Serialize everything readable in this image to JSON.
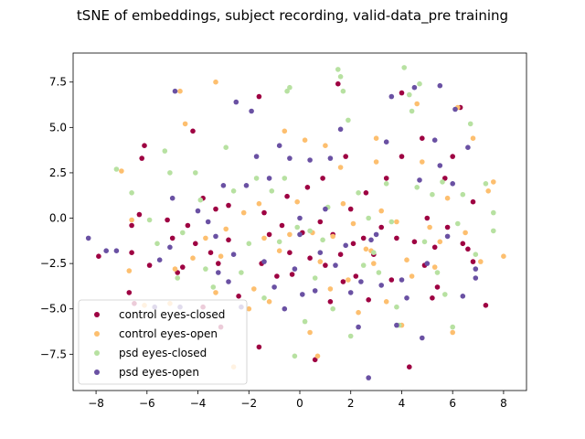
{
  "chart_data": {
    "type": "scatter",
    "title": "tSNE of embeddings, subject recording, valid-data_pre training",
    "xlabel": "",
    "ylabel": "",
    "xlim": [
      -8.9,
      8.9
    ],
    "ylim": [
      -9.5,
      9.1
    ],
    "xticks": [
      -8,
      -6,
      -4,
      -2,
      0,
      2,
      4,
      6,
      8
    ],
    "yticks": [
      -7.5,
      -5.0,
      -2.5,
      0.0,
      2.5,
      5.0,
      7.5
    ],
    "xtick_labels": [
      "−8",
      "−6",
      "−4",
      "−2",
      "0",
      "2",
      "4",
      "6",
      "8"
    ],
    "ytick_labels": [
      "−7.5",
      "−5.0",
      "−2.5",
      "0.0",
      "2.5",
      "5.0",
      "7.5"
    ],
    "grid": false,
    "legend_position": "lower-left",
    "series": [
      {
        "name": "control eyes-closed",
        "color": "#9e0142",
        "points": [
          [
            -7.9,
            -2.1
          ],
          [
            -6.7,
            -4.1
          ],
          [
            -6.1,
            4.0
          ],
          [
            -6.2,
            3.3
          ],
          [
            -5.9,
            -2.6
          ],
          [
            -6.6,
            -1.9
          ],
          [
            -6.6,
            -0.4
          ],
          [
            -6.5,
            -4.7
          ],
          [
            -6.3,
            0.2
          ],
          [
            -5.2,
            -0.1
          ],
          [
            -5.0,
            -1.1
          ],
          [
            -4.8,
            -3.0
          ],
          [
            -4.6,
            -2.7
          ],
          [
            -4.4,
            -0.4
          ],
          [
            -4.1,
            -1.4
          ],
          [
            -4.2,
            4.8
          ],
          [
            -3.8,
            1.1
          ],
          [
            -3.8,
            -4.9
          ],
          [
            -3.5,
            -1.9
          ],
          [
            -3.3,
            0.5
          ],
          [
            -3.2,
            -2.5
          ],
          [
            -3.1,
            -6.0
          ],
          [
            -2.8,
            0.7
          ],
          [
            -2.8,
            -1.2
          ],
          [
            -2.4,
            -4.3
          ],
          [
            -1.6,
            6.7
          ],
          [
            -1.6,
            -7.1
          ],
          [
            -1.5,
            -2.5
          ],
          [
            -1.4,
            0.3
          ],
          [
            -1.2,
            -0.9
          ],
          [
            -0.9,
            -3.2
          ],
          [
            -0.7,
            -0.4
          ],
          [
            -0.5,
            1.2
          ],
          [
            -0.4,
            -1.9
          ],
          [
            -0.3,
            -3.1
          ],
          [
            0.1,
            -0.8
          ],
          [
            0.3,
            1.7
          ],
          [
            0.4,
            -2.2
          ],
          [
            0.6,
            -7.8
          ],
          [
            0.8,
            -0.2
          ],
          [
            0.9,
            2.2
          ],
          [
            1.0,
            -2.6
          ],
          [
            1.2,
            -4.6
          ],
          [
            1.3,
            -0.9
          ],
          [
            1.5,
            7.4
          ],
          [
            1.6,
            -2.0
          ],
          [
            1.7,
            -3.5
          ],
          [
            1.8,
            3.4
          ],
          [
            2.0,
            0.5
          ],
          [
            2.1,
            -1.4
          ],
          [
            2.2,
            -3.2
          ],
          [
            2.5,
            -1.1
          ],
          [
            2.6,
            1.4
          ],
          [
            2.7,
            -4.5
          ],
          [
            2.9,
            -2.0
          ],
          [
            3.2,
            -0.5
          ],
          [
            3.4,
            2.2
          ],
          [
            3.6,
            -3.4
          ],
          [
            3.8,
            -1.1
          ],
          [
            4.0,
            6.9
          ],
          [
            4.0,
            3.4
          ],
          [
            4.3,
            -8.2
          ],
          [
            4.5,
            -1.3
          ],
          [
            4.8,
            4.4
          ],
          [
            4.9,
            -2.6
          ],
          [
            5.0,
            0.0
          ],
          [
            5.2,
            -4.4
          ],
          [
            5.3,
            -1.6
          ],
          [
            5.4,
            -3.8
          ],
          [
            5.7,
            2.2
          ],
          [
            5.8,
            -0.5
          ],
          [
            6.0,
            3.4
          ],
          [
            6.3,
            6.1
          ],
          [
            6.4,
            -1.4
          ],
          [
            6.6,
            -1.7
          ],
          [
            6.8,
            -2.4
          ],
          [
            6.8,
            0.9
          ],
          [
            7.3,
            -4.8
          ]
        ]
      },
      {
        "name": "control eyes-open",
        "color": "#fdbf6f",
        "points": [
          [
            -7.0,
            2.6
          ],
          [
            -6.6,
            -0.1
          ],
          [
            -6.7,
            -2.9
          ],
          [
            -6.1,
            -4.8
          ],
          [
            -5.1,
            -4.7
          ],
          [
            -4.9,
            -2.8
          ],
          [
            -4.7,
            7.0
          ],
          [
            -4.5,
            5.2
          ],
          [
            -4.2,
            -2.2
          ],
          [
            -3.7,
            -1.1
          ],
          [
            -3.3,
            7.5
          ],
          [
            -3.3,
            -4.1
          ],
          [
            -3.1,
            -2.1
          ],
          [
            -2.9,
            -0.6
          ],
          [
            -2.6,
            -8.2
          ],
          [
            -2.2,
            0.3
          ],
          [
            -2.0,
            -5.0
          ],
          [
            -1.8,
            -3.9
          ],
          [
            -1.6,
            0.8
          ],
          [
            -1.4,
            -1.1
          ],
          [
            -1.2,
            -4.6
          ],
          [
            -0.8,
            -1.8
          ],
          [
            -0.6,
            4.8
          ],
          [
            -0.4,
            -0.9
          ],
          [
            -0.1,
            0.9
          ],
          [
            0.2,
            4.3
          ],
          [
            0.4,
            -6.3
          ],
          [
            0.5,
            -0.8
          ],
          [
            0.7,
            -7.6
          ],
          [
            0.8,
            -2.4
          ],
          [
            1.0,
            4.0
          ],
          [
            1.2,
            -3.9
          ],
          [
            1.3,
            -1.0
          ],
          [
            1.6,
            2.8
          ],
          [
            1.7,
            0.8
          ],
          [
            1.9,
            -3.4
          ],
          [
            2.1,
            -0.3
          ],
          [
            2.3,
            -5.2
          ],
          [
            2.6,
            -1.7
          ],
          [
            2.8,
            -1.8
          ],
          [
            2.9,
            -2.5
          ],
          [
            3.0,
            4.4
          ],
          [
            3.0,
            3.1
          ],
          [
            3.2,
            0.4
          ],
          [
            3.4,
            -4.6
          ],
          [
            3.8,
            -0.2
          ],
          [
            4.0,
            -5.9
          ],
          [
            4.2,
            -2.3
          ],
          [
            4.4,
            -3.2
          ],
          [
            4.6,
            6.3
          ],
          [
            4.8,
            3.1
          ],
          [
            5.1,
            -0.5
          ],
          [
            5.3,
            -2.7
          ],
          [
            5.5,
            -1.3
          ],
          [
            5.8,
            1.1
          ],
          [
            6.0,
            -6.3
          ],
          [
            6.2,
            6.1
          ],
          [
            6.5,
            -0.8
          ],
          [
            6.8,
            4.4
          ],
          [
            7.1,
            -2.4
          ],
          [
            7.4,
            1.5
          ],
          [
            7.6,
            2.0
          ],
          [
            8.0,
            -2.1
          ]
        ]
      },
      {
        "name": "psd eyes-closed",
        "color": "#b7e1a1",
        "points": [
          [
            -7.2,
            2.7
          ],
          [
            -6.6,
            1.4
          ],
          [
            -5.9,
            -0.1
          ],
          [
            -5.6,
            -1.4
          ],
          [
            -5.3,
            3.7
          ],
          [
            -5.1,
            2.5
          ],
          [
            -4.8,
            -3.3
          ],
          [
            -4.6,
            -0.8
          ],
          [
            -4.1,
            2.5
          ],
          [
            -3.9,
            1.0
          ],
          [
            -3.7,
            -2.8
          ],
          [
            -3.4,
            -3.8
          ],
          [
            -2.9,
            3.9
          ],
          [
            -2.6,
            1.5
          ],
          [
            -2.3,
            -3.0
          ],
          [
            -2.0,
            -1.4
          ],
          [
            -1.7,
            2.2
          ],
          [
            -1.4,
            -4.4
          ],
          [
            -1.1,
            1.5
          ],
          [
            -0.8,
            -1.3
          ],
          [
            -0.6,
            2.2
          ],
          [
            -0.5,
            7.0
          ],
          [
            -0.4,
            7.2
          ],
          [
            -0.2,
            -7.6
          ],
          [
            -0.1,
            -0.5
          ],
          [
            0.2,
            -5.7
          ],
          [
            0.4,
            -0.7
          ],
          [
            0.6,
            -3.3
          ],
          [
            0.9,
            -1.2
          ],
          [
            1.1,
            0.6
          ],
          [
            1.3,
            -5.0
          ],
          [
            1.5,
            8.2
          ],
          [
            1.6,
            7.8
          ],
          [
            1.7,
            7.0
          ],
          [
            1.9,
            5.4
          ],
          [
            2.0,
            -6.5
          ],
          [
            2.3,
            1.4
          ],
          [
            2.5,
            -2.6
          ],
          [
            2.7,
            0.0
          ],
          [
            2.9,
            -1.9
          ],
          [
            3.1,
            -3.0
          ],
          [
            3.4,
            1.9
          ],
          [
            3.6,
            -0.2
          ],
          [
            3.8,
            -4.9
          ],
          [
            3.9,
            -5.9
          ],
          [
            4.1,
            8.3
          ],
          [
            4.3,
            6.8
          ],
          [
            4.4,
            5.9
          ],
          [
            4.6,
            1.7
          ],
          [
            4.7,
            7.4
          ],
          [
            4.9,
            -1.3
          ],
          [
            5.2,
            1.3
          ],
          [
            5.4,
            -3.0
          ],
          [
            5.6,
            2.0
          ],
          [
            5.7,
            -4.2
          ],
          [
            6.0,
            -6.0
          ],
          [
            6.2,
            -0.3
          ],
          [
            6.4,
            1.3
          ],
          [
            6.7,
            5.2
          ],
          [
            6.9,
            -2.0
          ],
          [
            7.3,
            1.9
          ],
          [
            7.6,
            0.3
          ],
          [
            7.6,
            -0.7
          ]
        ]
      },
      {
        "name": "psd eyes-open",
        "color": "#6a51a3",
        "points": [
          [
            -8.3,
            -1.1
          ],
          [
            -7.6,
            -1.8
          ],
          [
            -7.2,
            -1.8
          ],
          [
            -5.7,
            -4.9
          ],
          [
            -5.5,
            -2.3
          ],
          [
            -5.1,
            -1.6
          ],
          [
            -5.0,
            1.1
          ],
          [
            -4.9,
            7.0
          ],
          [
            -4.7,
            -4.9
          ],
          [
            -4.0,
            0.4
          ],
          [
            -3.6,
            -0.2
          ],
          [
            -3.3,
            -1.0
          ],
          [
            -3.2,
            -3.0
          ],
          [
            -3.0,
            1.8
          ],
          [
            -2.8,
            -3.5
          ],
          [
            -2.6,
            -2.0
          ],
          [
            -2.5,
            6.4
          ],
          [
            -2.3,
            -4.9
          ],
          [
            -2.1,
            1.8
          ],
          [
            -1.9,
            5.9
          ],
          [
            -1.7,
            3.4
          ],
          [
            -1.4,
            -2.4
          ],
          [
            -1.2,
            2.2
          ],
          [
            -1.0,
            -3.8
          ],
          [
            -0.8,
            4.0
          ],
          [
            -0.6,
            -5.0
          ],
          [
            -0.4,
            3.3
          ],
          [
            -0.2,
            -2.8
          ],
          [
            0.0,
            -0.9
          ],
          [
            0.1,
            -4.2
          ],
          [
            0.4,
            3.2
          ],
          [
            0.6,
            -4.0
          ],
          [
            0.8,
            -1.9
          ],
          [
            1.0,
            0.5
          ],
          [
            1.2,
            3.3
          ],
          [
            1.4,
            -2.6
          ],
          [
            1.6,
            4.9
          ],
          [
            1.8,
            -1.5
          ],
          [
            2.0,
            -4.1
          ],
          [
            2.3,
            -6.0
          ],
          [
            2.4,
            -3.5
          ],
          [
            2.7,
            -8.8
          ],
          [
            2.8,
            -1.2
          ],
          [
            3.0,
            -0.9
          ],
          [
            3.2,
            -3.7
          ],
          [
            3.4,
            4.2
          ],
          [
            3.6,
            6.7
          ],
          [
            3.8,
            -5.9
          ],
          [
            4.0,
            -3.4
          ],
          [
            4.2,
            -4.4
          ],
          [
            4.5,
            7.2
          ],
          [
            4.7,
            2.1
          ],
          [
            4.8,
            -6.6
          ],
          [
            5.0,
            -2.5
          ],
          [
            5.3,
            4.3
          ],
          [
            5.5,
            2.9
          ],
          [
            5.8,
            -1.0
          ],
          [
            6.0,
            1.9
          ],
          [
            6.1,
            6.0
          ],
          [
            6.4,
            -4.3
          ],
          [
            6.6,
            3.9
          ],
          [
            6.9,
            -2.8
          ],
          [
            6.9,
            -3.3
          ],
          [
            5.5,
            7.3
          ],
          [
            0.0,
            0.0
          ]
        ]
      }
    ]
  }
}
